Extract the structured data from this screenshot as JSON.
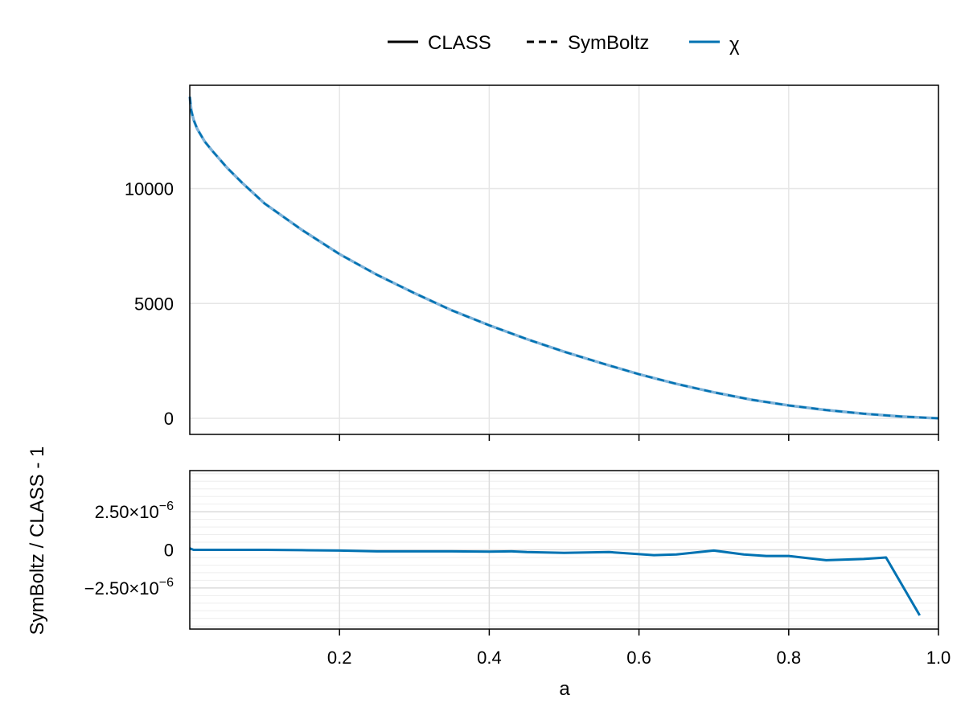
{
  "legend": {
    "entries": [
      {
        "label": "CLASS",
        "style": "solid",
        "color": "#000000"
      },
      {
        "label": "SymBoltz",
        "style": "dashed",
        "color": "#000000"
      },
      {
        "label": "χ",
        "style": "solid",
        "color": "#0072b2"
      }
    ]
  },
  "colors": {
    "series": "#0072b2",
    "series_light": "#7fb3d9",
    "grid": "#e6e6e6",
    "frame": "#000000"
  },
  "chart_data": [
    {
      "type": "line",
      "title": "",
      "xlabel": "",
      "ylabel": "",
      "xlim": [
        0.0,
        1.0
      ],
      "ylim": [
        -700,
        14500
      ],
      "yticks": [
        0,
        5000,
        10000
      ],
      "ytick_labels": [
        "0",
        "5000",
        "10000"
      ],
      "xticks": [
        0.2,
        0.4,
        0.6,
        0.8,
        1.0
      ],
      "grid": true,
      "legend_position": "top-center",
      "series": [
        {
          "name": "χ",
          "x": [
            0.0,
            0.002,
            0.005,
            0.01,
            0.02,
            0.03,
            0.05,
            0.07,
            0.1,
            0.15,
            0.2,
            0.25,
            0.3,
            0.35,
            0.4,
            0.45,
            0.5,
            0.55,
            0.6,
            0.65,
            0.7,
            0.75,
            0.8,
            0.85,
            0.9,
            0.95,
            1.0
          ],
          "y": [
            14000,
            13400,
            13000,
            12600,
            12050,
            11650,
            10900,
            10250,
            9350,
            8200,
            7150,
            6250,
            5450,
            4700,
            4050,
            3450,
            2900,
            2400,
            1920,
            1500,
            1130,
            810,
            560,
            360,
            200,
            80,
            0
          ]
        }
      ]
    },
    {
      "type": "line",
      "title": "",
      "xlabel": "a",
      "ylabel": "SymBoltz / CLASS - 1",
      "xlim": [
        0.0,
        1.0
      ],
      "ylim": [
        -5.2e-06,
        5.2e-06
      ],
      "yticks": [
        -2.5e-06,
        0,
        2.5e-06
      ],
      "ytick_labels": [
        {
          "mantissa": "−2.50×10",
          "exp": "−6"
        },
        {
          "mantissa": "0",
          "exp": ""
        },
        {
          "mantissa": "2.50×10",
          "exp": "−6"
        }
      ],
      "xticks": [
        0.2,
        0.4,
        0.6,
        0.8,
        1.0
      ],
      "xtick_labels": [
        "0.2",
        "0.4",
        "0.6",
        "0.8",
        "1.0"
      ],
      "grid": true,
      "series": [
        {
          "name": "SymBoltz / CLASS - 1",
          "x": [
            0.0,
            0.005,
            0.05,
            0.1,
            0.15,
            0.2,
            0.25,
            0.3,
            0.35,
            0.4,
            0.43,
            0.45,
            0.5,
            0.56,
            0.62,
            0.65,
            0.7,
            0.74,
            0.77,
            0.8,
            0.85,
            0.9,
            0.93,
            0.975
          ],
          "y": [
            1e-07,
            0,
            0,
            0,
            -2e-08,
            -5e-08,
            -1e-07,
            -1e-07,
            -1e-07,
            -1.2e-07,
            -1e-07,
            -1.5e-07,
            -2e-07,
            -1.5e-07,
            -3.5e-07,
            -3e-07,
            -5e-08,
            -3e-07,
            -4e-07,
            -4e-07,
            -6.8e-07,
            -6e-07,
            -5e-07,
            -4.3e-06
          ]
        }
      ]
    }
  ]
}
